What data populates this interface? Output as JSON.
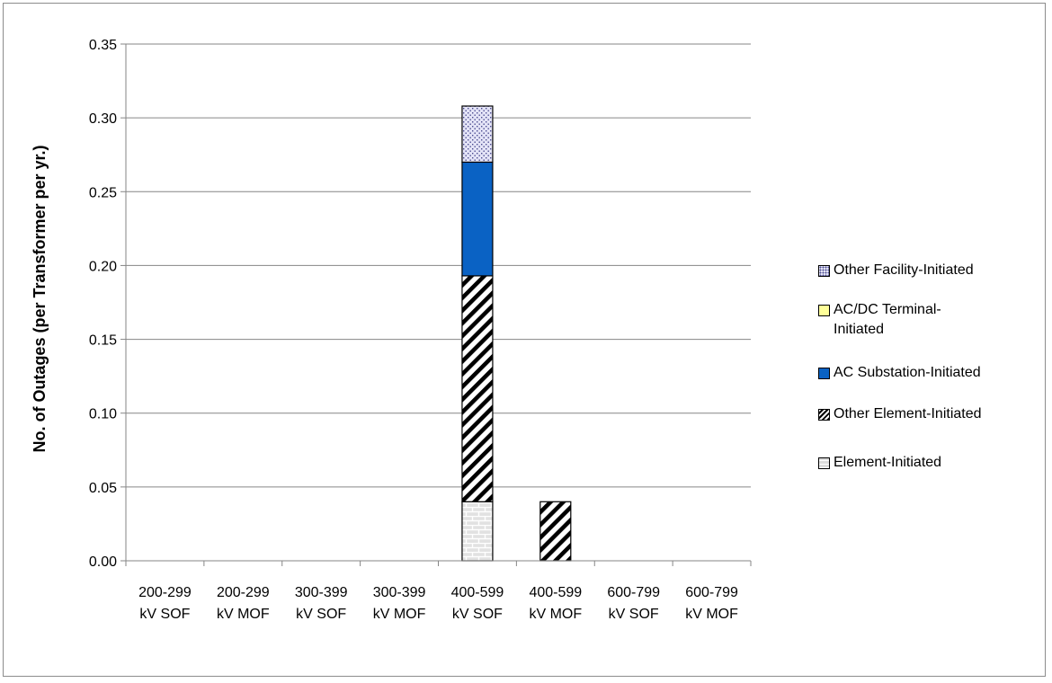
{
  "chart_data": {
    "type": "bar",
    "stacked": true,
    "title": "",
    "xlabel": "",
    "ylabel": "No. of Outages (per Transformer per yr.)",
    "ylim": [
      0,
      0.35
    ],
    "yticks": [
      "0.00",
      "0.05",
      "0.10",
      "0.15",
      "0.20",
      "0.25",
      "0.30",
      "0.35"
    ],
    "grid": true,
    "legend_position": "right",
    "categories": [
      [
        "200-299",
        "kV SOF"
      ],
      [
        "200-299",
        "kV MOF"
      ],
      [
        "300-399",
        "kV SOF"
      ],
      [
        "300-399",
        "kV MOF"
      ],
      [
        "400-599",
        "kV SOF"
      ],
      [
        "400-599",
        "kV MOF"
      ],
      [
        "600-799",
        "kV SOF"
      ],
      [
        "600-799",
        "kV MOF"
      ]
    ],
    "series": [
      {
        "name": "Element-Initiated",
        "values": [
          0,
          0,
          0,
          0,
          0.04,
          0,
          0,
          0
        ],
        "pattern": "brick",
        "color": "#d9d9d9"
      },
      {
        "name": "Other Element-Initiated",
        "values": [
          0,
          0,
          0,
          0,
          0.153,
          0.04,
          0,
          0
        ],
        "pattern": "diagonal",
        "color": "#000000"
      },
      {
        "name": "AC Substation-Initiated",
        "values": [
          0,
          0,
          0,
          0,
          0.077,
          0,
          0,
          0
        ],
        "pattern": "solid",
        "color": "#0a62c4"
      },
      {
        "name": "AC/DC Terminal-Initiated",
        "values": [
          0,
          0,
          0,
          0,
          0,
          0,
          0,
          0
        ],
        "pattern": "solid",
        "color": "#ffff99"
      },
      {
        "name": "Other Facility-Initiated",
        "values": [
          0,
          0,
          0,
          0,
          0.038,
          0,
          0,
          0
        ],
        "pattern": "dots",
        "color": "#d6d6f5"
      }
    ],
    "legend_order": [
      {
        "label_lines": [
          "Other Facility-Initiated"
        ],
        "series": 4
      },
      {
        "label_lines": [
          "AC/DC Terminal-",
          "Initiated"
        ],
        "series": 3
      },
      {
        "label_lines": [
          "AC Substation-Initiated"
        ],
        "series": 2
      },
      {
        "label_lines": [
          "Other Element-Initiated"
        ],
        "series": 1
      },
      {
        "label_lines": [
          "Element-Initiated"
        ],
        "series": 0
      }
    ]
  }
}
